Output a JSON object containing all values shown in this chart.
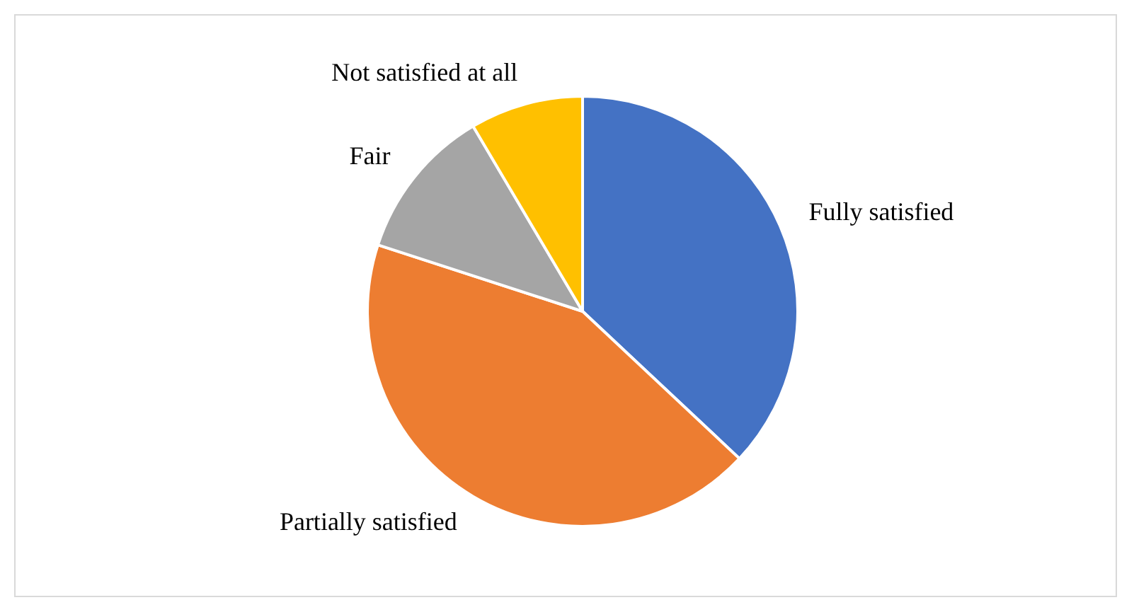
{
  "chart_data": {
    "type": "pie",
    "categories": [
      "Fully satisfied",
      "Partially satisfied",
      "Fair",
      "Not satisfied at all"
    ],
    "values": [
      37,
      43,
      11.5,
      8.5
    ],
    "colors": [
      "#4472c4",
      "#ed7d31",
      "#a5a5a5",
      "#ffc000"
    ]
  }
}
